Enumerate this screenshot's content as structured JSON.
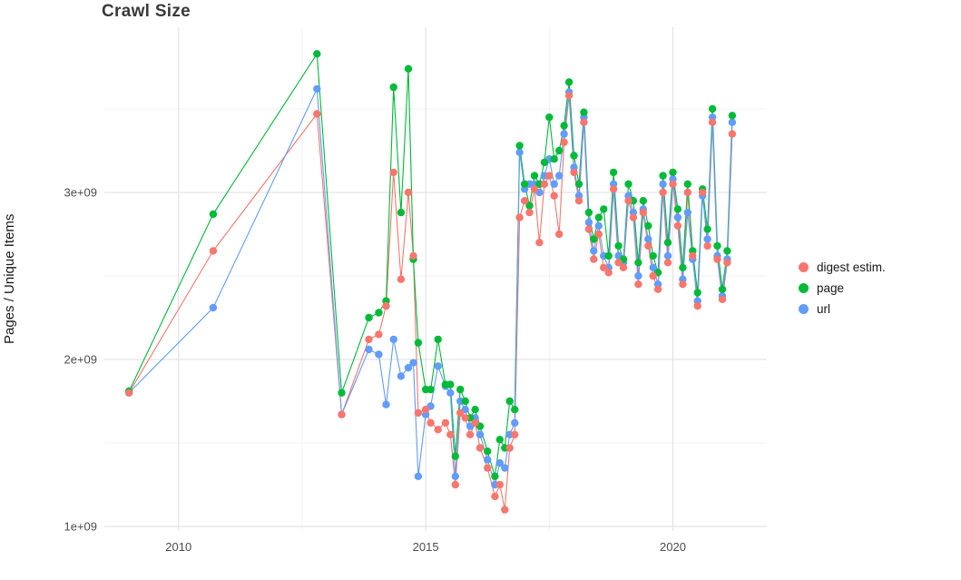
{
  "title": "Crawl Size",
  "ylabel": "Pages / Unique Items",
  "legend": {
    "items": [
      {
        "key": "digest",
        "label": "digest estim.",
        "color": "#F8766D"
      },
      {
        "key": "page",
        "label": "page",
        "color": "#00BA38"
      },
      {
        "key": "url",
        "label": "url",
        "color": "#619CFF"
      }
    ]
  },
  "colors": {
    "grid_major": "#e4e4e4",
    "grid_minor": "#f2f2f2",
    "tick_label": "#4d4d4d",
    "background": "#ffffff"
  },
  "chart_data": {
    "type": "line",
    "markers": true,
    "title": "Crawl Size",
    "xlabel": "",
    "ylabel": "Pages / Unique Items",
    "legend_position": "right",
    "grid": true,
    "y_unit": "1e9 (values below are in billions of pages / unique items)",
    "xlim": [
      2008.5,
      2021.9
    ],
    "ylim_billions": [
      0.973,
      3.989
    ],
    "x_ticks": [
      2010,
      2015,
      2020
    ],
    "x_tick_labels": [
      "2010",
      "2015",
      "2020"
    ],
    "x_minor": [
      2012.5,
      2017.5
    ],
    "y_ticks_billions": [
      1,
      2,
      3
    ],
    "y_tick_labels": [
      "1e+09",
      "2e+09",
      "3e+09"
    ],
    "y_minor_billions": [
      1.5,
      2.5,
      3.5
    ],
    "x": [
      2009.0,
      2010.7,
      2012.8,
      2013.3,
      2013.85,
      2014.05,
      2014.2,
      2014.35,
      2014.5,
      2014.65,
      2014.75,
      2014.85,
      2015.0,
      2015.1,
      2015.25,
      2015.4,
      2015.5,
      2015.6,
      2015.7,
      2015.8,
      2015.9,
      2016.0,
      2016.1,
      2016.25,
      2016.4,
      2016.5,
      2016.6,
      2016.7,
      2016.8,
      2016.9,
      2017.0,
      2017.1,
      2017.2,
      2017.3,
      2017.4,
      2017.5,
      2017.6,
      2017.7,
      2017.8,
      2017.9,
      2018.0,
      2018.1,
      2018.2,
      2018.3,
      2018.4,
      2018.5,
      2018.6,
      2018.7,
      2018.8,
      2018.9,
      2019.0,
      2019.1,
      2019.2,
      2019.3,
      2019.4,
      2019.5,
      2019.6,
      2019.7,
      2019.8,
      2019.9,
      2020.0,
      2020.1,
      2020.2,
      2020.3,
      2020.4,
      2020.5,
      2020.6,
      2020.7,
      2020.8,
      2020.9,
      2021.0,
      2021.1,
      2021.2
    ],
    "series": [
      {
        "key": "digest",
        "name": "digest estim.",
        "color": "#F8766D",
        "values": [
          1.8,
          2.65,
          3.47,
          1.67,
          2.12,
          2.15,
          2.32,
          3.12,
          2.48,
          3.0,
          2.62,
          1.68,
          1.7,
          1.62,
          1.58,
          1.62,
          1.55,
          1.25,
          1.68,
          1.65,
          1.55,
          1.62,
          1.47,
          1.35,
          1.18,
          1.25,
          1.1,
          1.47,
          1.55,
          2.85,
          2.95,
          2.88,
          3.02,
          2.7,
          3.05,
          3.1,
          2.98,
          2.75,
          3.3,
          3.58,
          3.12,
          2.95,
          3.42,
          2.78,
          2.6,
          2.75,
          2.55,
          2.52,
          3.02,
          2.58,
          2.55,
          2.95,
          2.85,
          2.45,
          2.88,
          2.68,
          2.5,
          2.42,
          3.0,
          2.58,
          3.05,
          2.8,
          2.45,
          3.0,
          2.62,
          2.32,
          3.0,
          2.68,
          3.42,
          2.6,
          2.36,
          2.58,
          3.35
        ]
      },
      {
        "key": "page",
        "name": "page",
        "color": "#00BA38",
        "values": [
          1.81,
          2.87,
          3.83,
          1.8,
          2.25,
          2.28,
          2.35,
          3.63,
          2.88,
          3.74,
          2.6,
          2.1,
          1.82,
          1.82,
          2.12,
          1.85,
          1.85,
          1.42,
          1.82,
          1.75,
          1.65,
          1.7,
          1.6,
          1.45,
          1.3,
          1.52,
          1.47,
          1.75,
          1.7,
          3.28,
          3.05,
          2.92,
          3.1,
          3.05,
          3.18,
          3.45,
          3.2,
          3.25,
          3.4,
          3.66,
          3.22,
          3.05,
          3.48,
          2.88,
          2.72,
          2.85,
          2.9,
          2.62,
          3.12,
          2.68,
          2.6,
          3.05,
          2.95,
          2.58,
          2.95,
          2.8,
          2.62,
          2.52,
          3.1,
          2.7,
          3.12,
          2.9,
          2.55,
          3.05,
          2.65,
          2.4,
          3.02,
          2.78,
          3.5,
          2.68,
          2.42,
          2.65,
          3.46
        ]
      },
      {
        "key": "url",
        "name": "url",
        "color": "#619CFF",
        "values": [
          1.8,
          2.31,
          3.62,
          1.67,
          2.06,
          2.03,
          1.73,
          2.12,
          1.9,
          1.95,
          1.98,
          1.3,
          1.67,
          1.72,
          1.96,
          1.84,
          1.8,
          1.3,
          1.75,
          1.7,
          1.6,
          1.65,
          1.55,
          1.4,
          1.25,
          1.38,
          1.35,
          1.55,
          1.62,
          3.24,
          3.02,
          3.05,
          3.05,
          3.0,
          3.1,
          3.2,
          3.05,
          3.1,
          3.35,
          3.6,
          3.15,
          2.98,
          3.45,
          2.82,
          2.65,
          2.8,
          2.62,
          2.55,
          3.05,
          2.62,
          2.58,
          2.98,
          2.88,
          2.5,
          2.9,
          2.72,
          2.55,
          2.45,
          3.05,
          2.62,
          3.08,
          2.85,
          2.48,
          2.88,
          2.6,
          2.35,
          2.98,
          2.72,
          3.45,
          2.62,
          2.38,
          2.6,
          3.42
        ]
      }
    ]
  }
}
